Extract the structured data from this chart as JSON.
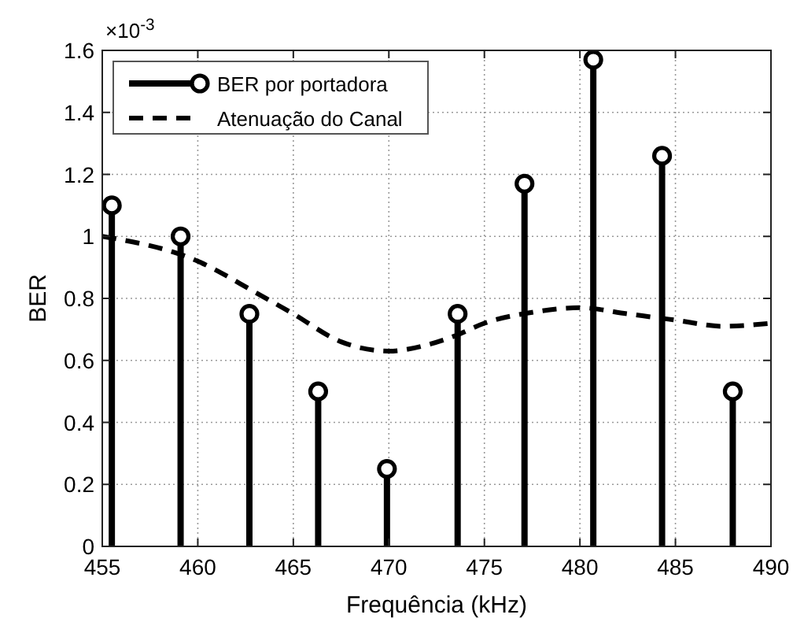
{
  "chart_data": {
    "type": "lollipop",
    "xlabel": "Frequência (kHz)",
    "ylabel": "BER",
    "annotations": [
      "×10$^{-3}$"
    ],
    "xlim": [
      455,
      490
    ],
    "xticks": [
      455,
      460,
      465,
      470,
      475,
      480,
      485,
      490
    ],
    "ylim": [
      0,
      1.6
    ],
    "yticks": [
      0,
      0.2,
      0.4,
      0.6,
      0.8,
      1,
      1.2,
      1.4,
      1.6
    ],
    "grid": true,
    "legend": "top left",
    "series": [
      {
        "name": "BER por portadora",
        "color": "#000000",
        "marker": "circle",
        "x": [
          455.5,
          459.1,
          462.7,
          466.3,
          469.9,
          473.6,
          477.1,
          480.7,
          484.3,
          488.0
        ],
        "values": [
          1.1,
          1.0,
          0.75,
          0.5,
          0.25,
          0.75,
          1.17,
          1.57,
          1.26,
          0.5
        ]
      },
      {
        "name": "Atenuação do Canal",
        "type": "line",
        "color": "#000000",
        "line_style": "dashed",
        "marker": "none",
        "x": [
          455,
          460,
          463,
          465,
          467.5,
          470,
          472,
          473.5,
          475,
          477.5,
          480,
          482.5,
          485,
          487.5,
          490
        ],
        "values": [
          1.0,
          0.92,
          0.82,
          0.75,
          0.66,
          0.63,
          0.65,
          0.68,
          0.72,
          0.755,
          0.77,
          0.75,
          0.73,
          0.71,
          0.72
        ]
      }
    ]
  }
}
